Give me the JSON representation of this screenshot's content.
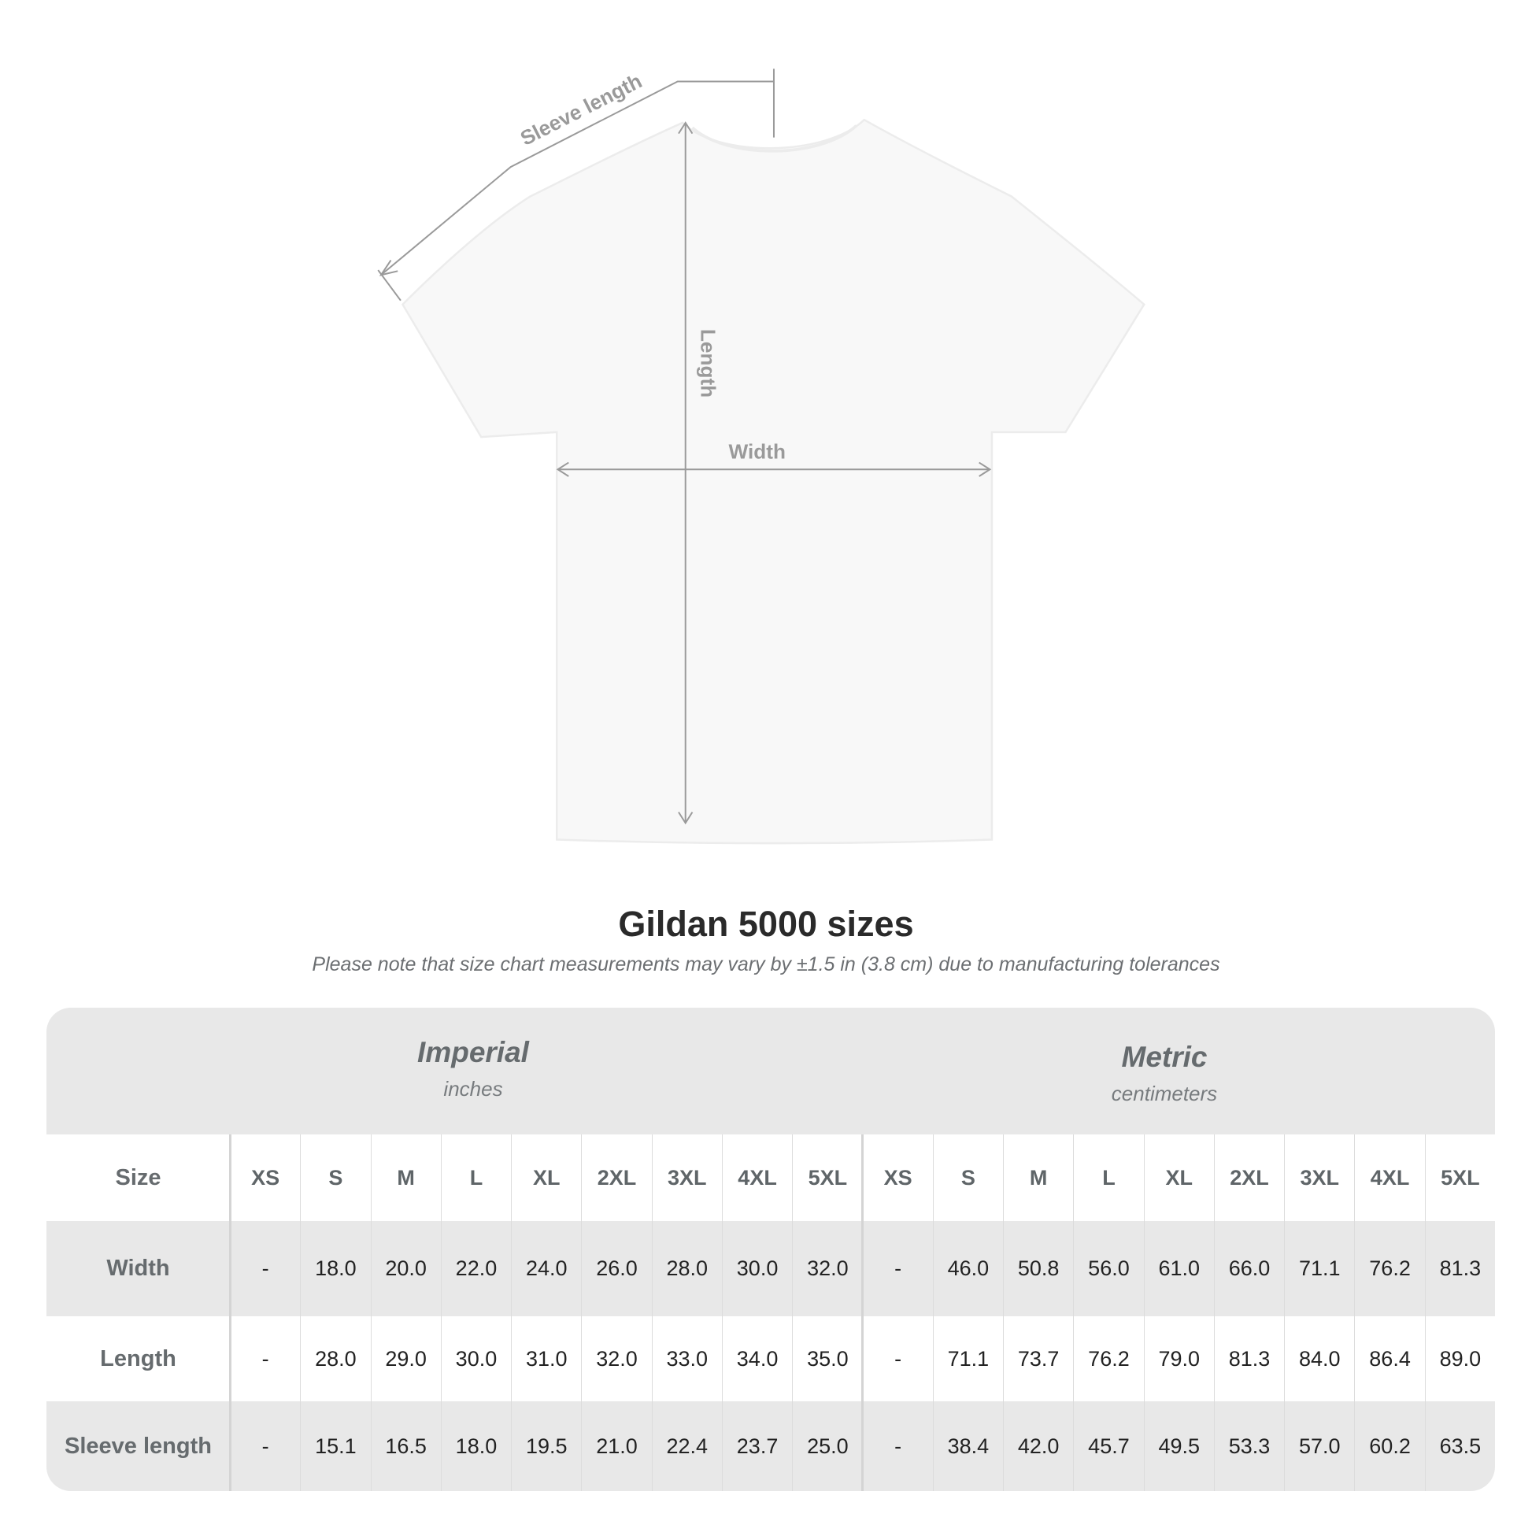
{
  "diagram": {
    "sleeve_label": "Sleeve length",
    "length_label": "Length",
    "width_label": "Width"
  },
  "title": "Gildan 5000 sizes",
  "subtitle": "Please note that size chart measurements may vary by ±1.5 in (3.8 cm) due to manufacturing tolerances",
  "table": {
    "imperial": {
      "name": "Imperial",
      "unit": "inches"
    },
    "metric": {
      "name": "Metric",
      "unit": "centimeters"
    },
    "size_label": "Size",
    "sizes": [
      "XS",
      "S",
      "M",
      "L",
      "XL",
      "2XL",
      "3XL",
      "4XL",
      "5XL"
    ],
    "rows": [
      {
        "label": "Width",
        "imperial": [
          "-",
          "18.0",
          "20.0",
          "22.0",
          "24.0",
          "26.0",
          "28.0",
          "30.0",
          "32.0"
        ],
        "metric": [
          "-",
          "46.0",
          "50.8",
          "56.0",
          "61.0",
          "66.0",
          "71.1",
          "76.2",
          "81.3"
        ]
      },
      {
        "label": "Length",
        "imperial": [
          "-",
          "28.0",
          "29.0",
          "30.0",
          "31.0",
          "32.0",
          "33.0",
          "34.0",
          "35.0"
        ],
        "metric": [
          "-",
          "71.1",
          "73.7",
          "76.2",
          "79.0",
          "81.3",
          "84.0",
          "86.4",
          "89.0"
        ]
      },
      {
        "label": "Sleeve length",
        "imperial": [
          "-",
          "15.1",
          "16.5",
          "18.0",
          "19.5",
          "21.0",
          "22.4",
          "23.7",
          "25.0"
        ],
        "metric": [
          "-",
          "38.4",
          "42.0",
          "45.7",
          "49.5",
          "53.3",
          "57.0",
          "60.2",
          "63.5"
        ]
      }
    ]
  }
}
